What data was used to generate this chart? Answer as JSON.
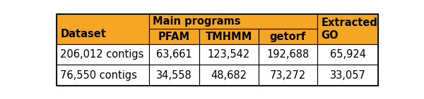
{
  "header_bg_color": "#F5A623",
  "header_text_color": "#000000",
  "data_bg_color": "#FFFFFF",
  "data_text_color": "#000000",
  "border_color": "#000000",
  "group_label": "Main programs",
  "col_headers": [
    "Dataset",
    "PFAM",
    "TMHMM",
    "getorf",
    "Extracted\nGO"
  ],
  "rows": [
    [
      "206,012 contigs",
      "63,661",
      "123,542",
      "192,688",
      "65,924"
    ],
    [
      "76,550 contigs",
      "34,558",
      "48,682",
      "73,272",
      "33,057"
    ]
  ],
  "header_fontsize": 10.5,
  "data_fontsize": 10.5
}
